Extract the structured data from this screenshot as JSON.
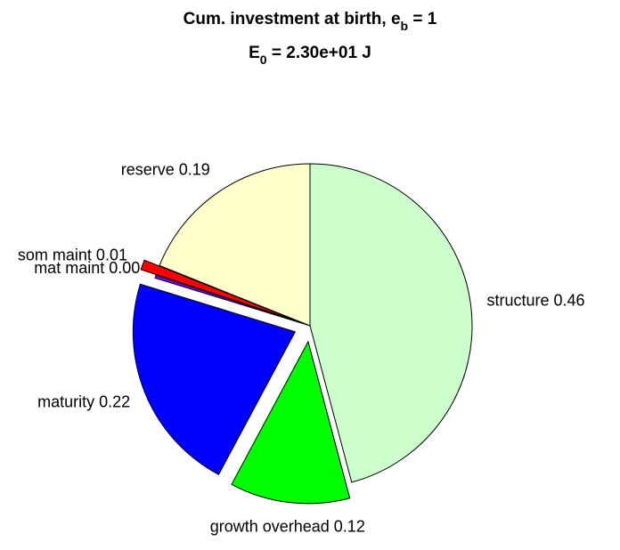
{
  "chart_data": {
    "type": "pie",
    "title": [
      [
        "Cum. investment at birth, e",
        "b",
        " = 1"
      ],
      [
        "E",
        "0",
        " = 2.30e+01 J"
      ]
    ],
    "categories": [
      "structure 0.46",
      "growth overhead 0.12",
      "maturity 0.22",
      "mat maint 0.00",
      "som maint 0.01",
      "reserve 0.19"
    ],
    "values": [
      0.46,
      0.12,
      0.22,
      0.003,
      0.01,
      0.19
    ],
    "colors": [
      "#ccffcc",
      "#00ff00",
      "#0000ff",
      "#8000ff",
      "#ff0000",
      "#ffffcc"
    ],
    "explode": [
      false,
      true,
      true,
      false,
      true,
      false
    ]
  }
}
